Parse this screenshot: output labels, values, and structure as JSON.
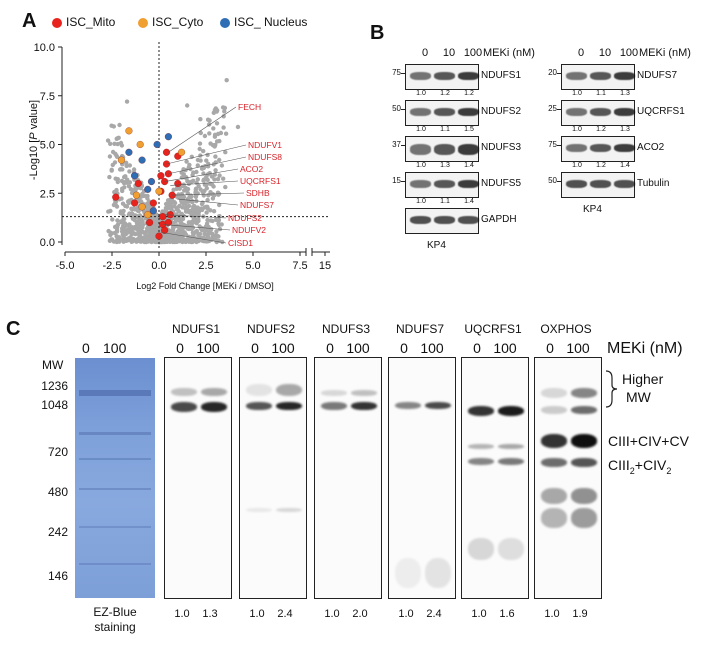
{
  "panels": {
    "a": "A",
    "b": "B",
    "c": "C"
  },
  "colors": {
    "mito": "#e8231e",
    "cyto": "#f0a030",
    "nucleus": "#2f6db5",
    "bg_point": "#a8a8a8",
    "label_red": "#d8232a"
  },
  "chart_data": {
    "type": "scatter",
    "title": "",
    "xlabel": "Log2 Fold Change [MEKi / DMSO]",
    "ylabel_prefix": "-Log10 [",
    "ylabel_italic": "P",
    "ylabel_suffix": " value]",
    "xlim": [
      -5.0,
      15
    ],
    "ylim": [
      0,
      10
    ],
    "x_ticks": [
      "-5.0",
      "-2.5",
      "0.0",
      "2.5",
      "5.0",
      "7.5",
      "15"
    ],
    "y_ticks": [
      "0.0",
      "2.5",
      "5.0",
      "7.5",
      "10.0"
    ],
    "threshold_y": 1.3,
    "legend": [
      {
        "name": "ISC_Mito",
        "color": "#e8231e"
      },
      {
        "name": "ISC_Cyto",
        "color": "#f0a030"
      },
      {
        "name": "ISC_ Nucleus",
        "color": "#2f6db5"
      }
    ],
    "series": [
      {
        "name": "ISC_Mito",
        "color": "#e8231e",
        "points": [
          [
            0.6,
            1.4
          ],
          [
            0.1,
            2.6
          ],
          [
            0.3,
            3.1
          ],
          [
            0.5,
            3.5
          ],
          [
            0.4,
            4.0
          ],
          [
            0.4,
            4.6
          ],
          [
            1.0,
            4.4
          ],
          [
            -2.3,
            2.3
          ],
          [
            -1.3,
            2.0
          ],
          [
            -1.1,
            3.0
          ],
          [
            0.2,
            0.9
          ],
          [
            0.3,
            0.6
          ],
          [
            0.0,
            0.3
          ],
          [
            -0.5,
            1.0
          ],
          [
            0.2,
            1.3
          ],
          [
            1.0,
            3.0
          ],
          [
            0.7,
            2.4
          ],
          [
            0.1,
            3.4
          ],
          [
            -0.3,
            2.0
          ],
          [
            0.5,
            1.0
          ]
        ]
      },
      {
        "name": "ISC_Cyto",
        "color": "#f0a030",
        "points": [
          [
            -1.2,
            2.4
          ],
          [
            -1.6,
            5.7
          ],
          [
            -2.0,
            4.2
          ],
          [
            -0.9,
            1.8
          ],
          [
            -0.6,
            1.4
          ],
          [
            -1.0,
            5.0
          ],
          [
            0.0,
            2.6
          ],
          [
            1.2,
            4.6
          ]
        ]
      },
      {
        "name": "ISC_ Nucleus",
        "color": "#2f6db5",
        "points": [
          [
            -1.6,
            4.6
          ],
          [
            -0.9,
            4.2
          ],
          [
            -0.4,
            3.1
          ],
          [
            -0.6,
            2.7
          ],
          [
            -0.3,
            1.6
          ],
          [
            -0.1,
            5.0
          ],
          [
            0.5,
            5.4
          ],
          [
            -1.3,
            3.4
          ]
        ]
      }
    ],
    "annotations": [
      "FECH",
      "NDUFV1",
      "NDUFS8",
      "ACO2",
      "UQCRFS1",
      "SDHB",
      "NDUFS7",
      "NDUFS2",
      "NDUFV2",
      "CISD1"
    ]
  },
  "panel_b": {
    "meki_label": "MEKi (nM)",
    "conc": [
      "0",
      "10",
      "100"
    ],
    "cell_line": "KP4",
    "left": [
      {
        "mw": "75",
        "name": "NDUFS1",
        "q": [
          "1.0",
          "1.2",
          "1.2"
        ]
      },
      {
        "mw": "50",
        "name": "NDUFS2",
        "q": [
          "1.0",
          "1.1",
          "1.5"
        ]
      },
      {
        "mw": "37",
        "name": "NDUFS3",
        "q": [
          "1.0",
          "1.3",
          "1.4"
        ]
      },
      {
        "mw": "15",
        "name": "NDUFS5",
        "q": [
          "1.0",
          "1.1",
          "1.4"
        ]
      },
      {
        "mw": "",
        "name": "GAPDH",
        "q": []
      }
    ],
    "right": [
      {
        "mw": "20",
        "name": "NDUFS7",
        "q": [
          "1.0",
          "1.1",
          "1.3"
        ]
      },
      {
        "mw": "25",
        "name": "UQCRFS1",
        "q": [
          "1.0",
          "1.2",
          "1.3"
        ]
      },
      {
        "mw": "75",
        "name": "ACO2",
        "q": [
          "1.0",
          "1.2",
          "1.4"
        ]
      },
      {
        "mw": "50",
        "name": "Tubulin",
        "q": []
      }
    ]
  },
  "panel_c": {
    "mw_label": "MW",
    "mw_values": [
      "1236",
      "1048",
      "720",
      "480",
      "242",
      "146"
    ],
    "meki_label": "MEKi (nM)",
    "lanes_conc": [
      "0",
      "100"
    ],
    "stain_label_1": "EZ-Blue",
    "stain_label_2": "staining",
    "blots": [
      {
        "name": "NDUFS1",
        "q": [
          "1.0",
          "1.3"
        ]
      },
      {
        "name": "NDUFS2",
        "q": [
          "1.0",
          "2.4"
        ]
      },
      {
        "name": "NDUFS3",
        "q": [
          "1.0",
          "2.0"
        ]
      },
      {
        "name": "NDUFS7",
        "q": [
          "1.0",
          "2.4"
        ]
      },
      {
        "name": "UQCRFS1",
        "q": [
          "1.0",
          "1.6"
        ]
      },
      {
        "name": "OXPHOS",
        "q": [
          "1.0",
          "1.9"
        ]
      }
    ],
    "complex_labels": {
      "higher_1": "Higher",
      "higher_2": "MW",
      "sc1": "CIII+CIV+CV",
      "sc2_a": "CIII",
      "sc2_sub1": "2",
      "sc2_b": "+CIV",
      "sc2_sub2": "2"
    }
  }
}
